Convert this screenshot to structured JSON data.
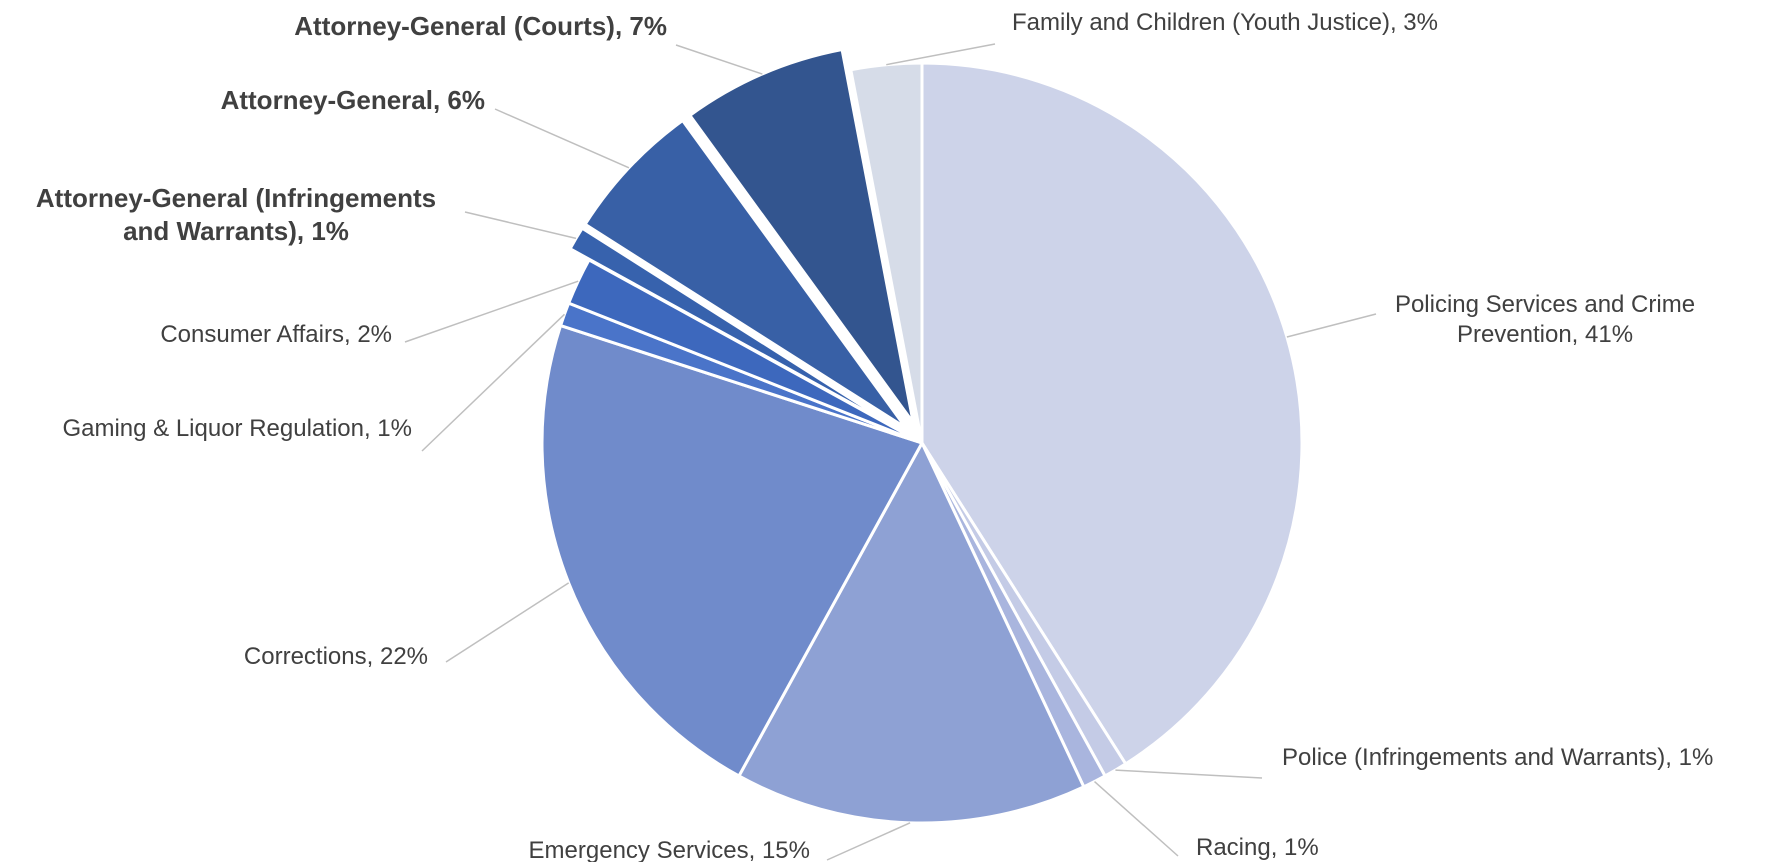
{
  "chart_data": {
    "type": "pie",
    "title": "",
    "start_angle_deg": 0,
    "direction": "clockwise",
    "slices": [
      {
        "label": "Policing Services and Crime Prevention",
        "value": 41,
        "display": "Policing Services and Crime Prevention, 41%",
        "lines": [
          "Policing Services and Crime",
          "Prevention, 41%"
        ],
        "color": "#cdd3e9",
        "exploded": false,
        "bold": false
      },
      {
        "label": "Police (Infringements and Warrants)",
        "value": 1,
        "display": "Police (Infringements and Warrants), 1%",
        "lines": [
          "Police (Infringements and Warrants), 1%"
        ],
        "color": "#c4cbe6",
        "exploded": false,
        "bold": false
      },
      {
        "label": "Racing",
        "value": 1,
        "display": "Racing, 1%",
        "lines": [
          "Racing, 1%"
        ],
        "color": "#a9b5de",
        "exploded": false,
        "bold": false
      },
      {
        "label": "Emergency Services",
        "value": 15,
        "display": "Emergency Services, 15%",
        "lines": [
          "Emergency Services, 15%"
        ],
        "color": "#8ea1d4",
        "exploded": false,
        "bold": false
      },
      {
        "label": "Corrections",
        "value": 22,
        "display": "Corrections, 22%",
        "lines": [
          "Corrections, 22%"
        ],
        "color": "#708bcb",
        "exploded": false,
        "bold": false
      },
      {
        "label": "Gaming & Liquor Regulation",
        "value": 1,
        "display": "Gaming & Liquor Regulation, 1%",
        "lines": [
          "Gaming & Liquor Regulation, 1%"
        ],
        "color": "#4a74c9",
        "exploded": false,
        "bold": false
      },
      {
        "label": "Consumer Affairs",
        "value": 2,
        "display": "Consumer Affairs, 2%",
        "lines": [
          "Consumer Affairs, 2%"
        ],
        "color": "#3d68bd",
        "exploded": false,
        "bold": false
      },
      {
        "label": "Attorney-General (Infringements and Warrants)",
        "value": 1,
        "display": "Attorney-General (Infringements and Warrants), 1%",
        "lines": [
          "Attorney-General (Infringements",
          "and Warrants), 1%"
        ],
        "color": "#3762ad",
        "exploded": true,
        "bold": true
      },
      {
        "label": "Attorney-General",
        "value": 6,
        "display": "Attorney-General, 6%",
        "lines": [
          "Attorney-General, 6%"
        ],
        "color": "#3860a6",
        "exploded": true,
        "bold": true
      },
      {
        "label": "Attorney-General (Courts)",
        "value": 7,
        "display": "Attorney-General (Courts), 7%",
        "lines": [
          "Attorney-General (Courts), 7%"
        ],
        "color": "#33558f",
        "exploded": true,
        "bold": true
      },
      {
        "label": "Family and Children (Youth Justice)",
        "value": 3,
        "display": "Family and Children (Youth Justice), 3%",
        "lines": [
          "Family and Children (Youth Justice), 3%"
        ],
        "color": "#d6dce8",
        "exploded": false,
        "bold": false
      }
    ]
  }
}
